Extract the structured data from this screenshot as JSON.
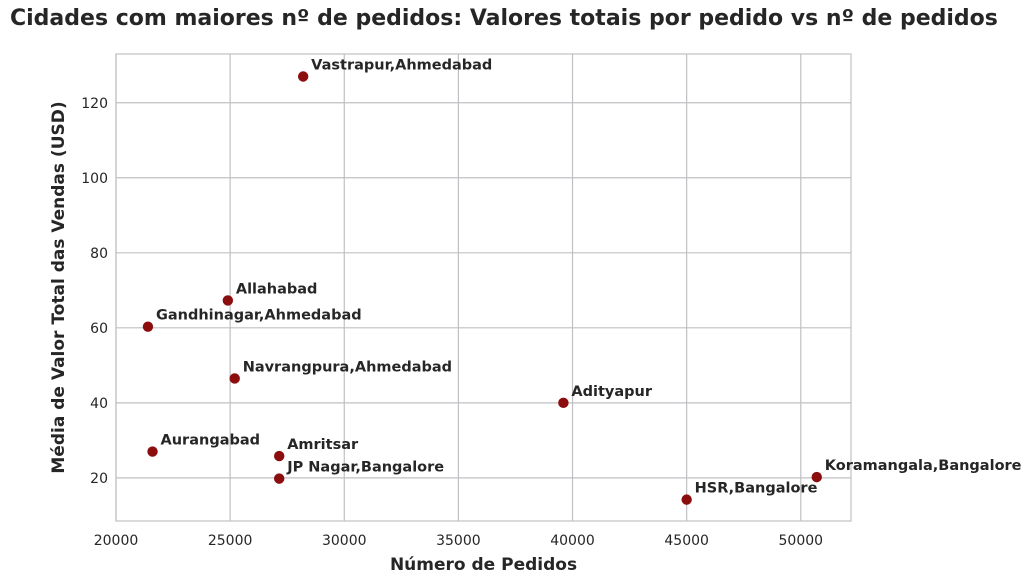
{
  "chart_data": {
    "type": "scatter",
    "title": "Cidades com maiores nº de pedidos: Valores totais por pedido vs nº de pedidos",
    "xlabel": "Número de Pedidos",
    "ylabel": "Média de Valor Total das Vendas (USD)",
    "xlim": [
      20000,
      52200
    ],
    "ylim": [
      8.5,
      133
    ],
    "xticks": [
      "20000",
      "25000",
      "30000",
      "35000",
      "40000",
      "45000",
      "50000"
    ],
    "yticks": [
      "20",
      "40",
      "60",
      "80",
      "100",
      "120"
    ],
    "grid": true,
    "marker_color": "#8b0d0d",
    "points": [
      {
        "label": "Vastrapur,Ahmedabad",
        "x": 28200,
        "y": 127
      },
      {
        "label": "Allahabad",
        "x": 24900,
        "y": 67.3
      },
      {
        "label": "Gandhinagar,Ahmedabad",
        "x": 21400,
        "y": 60.3
      },
      {
        "label": "Navrangpura,Ahmedabad",
        "x": 25200,
        "y": 46.5
      },
      {
        "label": "Adityapur",
        "x": 39600,
        "y": 40
      },
      {
        "label": "Aurangabad",
        "x": 21600,
        "y": 27
      },
      {
        "label": "Amritsar",
        "x": 27150,
        "y": 25.8
      },
      {
        "label": "JP Nagar,Bangalore",
        "x": 27150,
        "y": 19.8
      },
      {
        "label": "Koramangala,Bangalore",
        "x": 50700,
        "y": 20.2
      },
      {
        "label": "HSR,Bangalore",
        "x": 45000,
        "y": 14.2
      }
    ]
  }
}
